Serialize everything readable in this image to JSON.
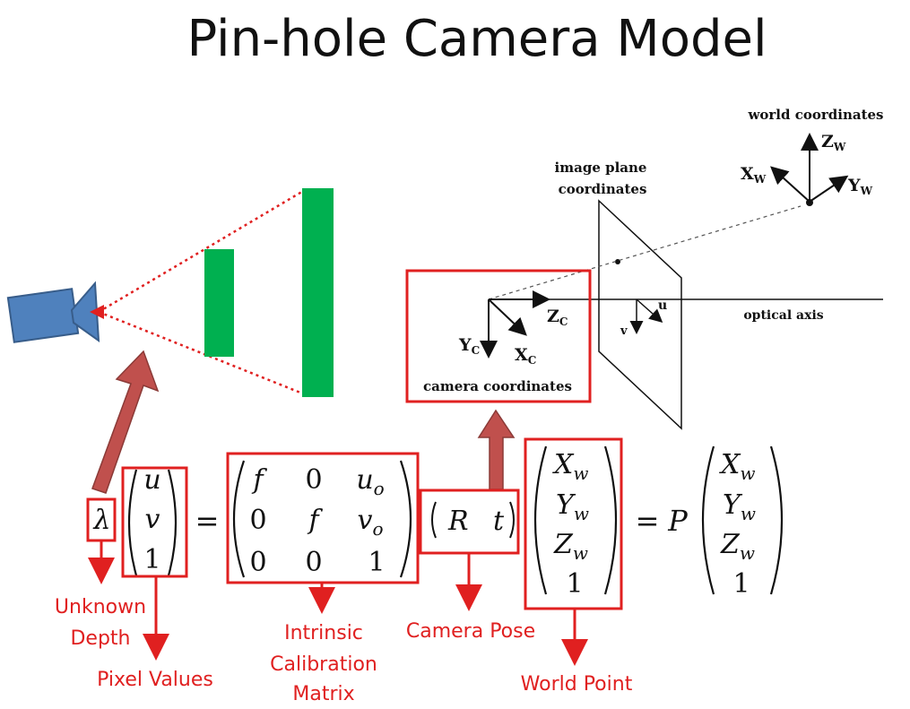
{
  "title": "Pin-hole Camera Model",
  "diagram": {
    "world_coordinates": "world coordinates",
    "zw_axis": "Z",
    "xw_axis": "X",
    "yw_axis": "Y",
    "w_sub": "W",
    "image_plane_line1": "image plane",
    "image_plane_line2": "coordinates",
    "optical_axis": "optical axis",
    "zc_axis": "Z",
    "yc_axis": "Y",
    "xc_axis": "X",
    "c_sub": "C",
    "u_axis": "u",
    "v_axis": "v",
    "camera_coordinates": "camera coordinates"
  },
  "equation": {
    "lambda": "λ",
    "pixel": [
      "u",
      "v",
      "1"
    ],
    "intrinsic": [
      [
        "f",
        "0",
        "u",
        "o"
      ],
      [
        "0",
        "f",
        "v",
        "o"
      ],
      [
        "0",
        "0",
        "1",
        ""
      ]
    ],
    "pose_r": "R",
    "pose_t": "t",
    "world": [
      [
        "X",
        "w"
      ],
      [
        "Y",
        "w"
      ],
      [
        "Z",
        "w"
      ],
      [
        "1",
        ""
      ]
    ],
    "equals": "=",
    "p": "P"
  },
  "labels": {
    "unknown_line1": "Unknown",
    "unknown_line2": "Depth",
    "pixel_values": "Pixel Values",
    "intrinsic_line1": "Intrinsic",
    "intrinsic_line2": "Calibration",
    "intrinsic_line3": "Matrix",
    "camera_pose": "Camera Pose",
    "world_point": "World Point"
  },
  "colors": {
    "annotation_red": "#e02020",
    "arrow_brick": "#c0504d",
    "camera_blue": "#4f81bd",
    "object_green": "#00b050"
  }
}
